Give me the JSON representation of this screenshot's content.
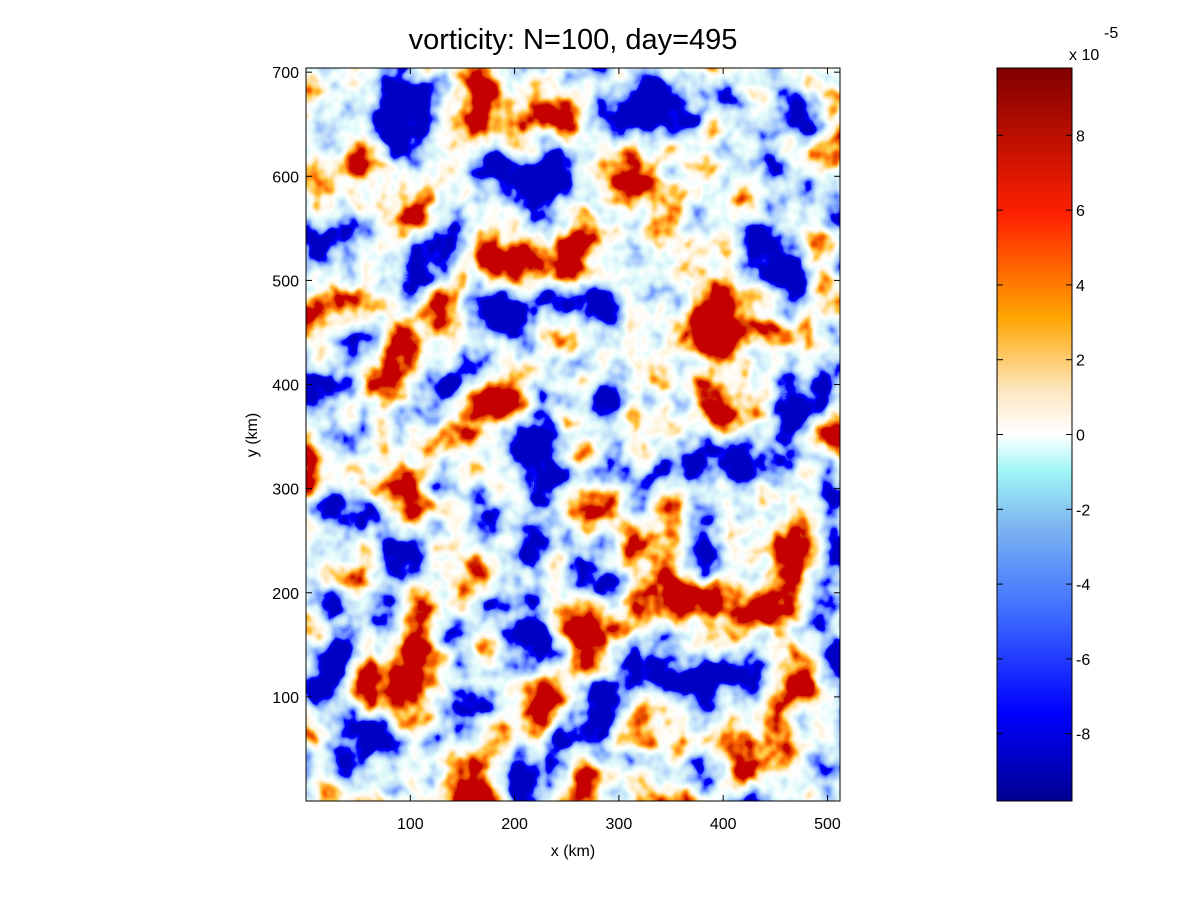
{
  "chart_data": {
    "type": "heatmap",
    "title": "vorticity: N=100, day=495",
    "xlabel": "x (km)",
    "ylabel": "y (km)",
    "xlim": [
      0,
      512
    ],
    "ylim": [
      0,
      704
    ],
    "x_ticks": [
      "100",
      "200",
      "300",
      "400",
      "500"
    ],
    "y_ticks": [
      "100",
      "200",
      "300",
      "400",
      "500",
      "600",
      "700"
    ],
    "colorbar": {
      "exponent_base": "x 10",
      "exponent": "-5",
      "range": [
        -9.8,
        9.8
      ],
      "ticks": [
        "8",
        "6",
        "4",
        "2",
        "0",
        "-2",
        "-4",
        "-6",
        "-8"
      ],
      "colors": [
        "#00008f",
        "#0000ff",
        "#3f6fff",
        "#7fb8f0",
        "#9ff6f6",
        "#ffffff",
        "#fde7c0",
        "#ffa500",
        "#ff2000",
        "#800000"
      ]
    }
  }
}
